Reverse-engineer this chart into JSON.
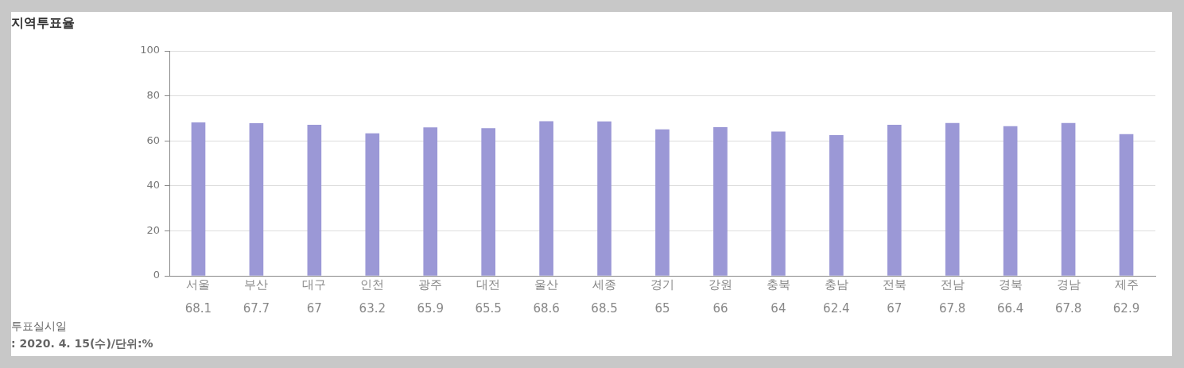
{
  "chart_data": {
    "type": "bar",
    "title": "지역투표율",
    "categories": [
      "서울",
      "부산",
      "대구",
      "인천",
      "광주",
      "대전",
      "울산",
      "세종",
      "경기",
      "강원",
      "충북",
      "충남",
      "전북",
      "전남",
      "경북",
      "경남",
      "제주"
    ],
    "values": [
      68.1,
      67.7,
      67,
      63.2,
      65.9,
      65.5,
      68.6,
      68.5,
      65,
      66,
      64,
      62.4,
      67,
      67.8,
      66.4,
      67.8,
      62.9
    ],
    "color": "#9b98d6",
    "ylim": [
      0,
      100
    ],
    "yticks": [
      0,
      20,
      40,
      60,
      80,
      100
    ],
    "grid": "y",
    "legend": false,
    "data_labels": true,
    "annotations": [
      "투표실시일",
      ": 2020. 4. 15(수)/단위:%"
    ]
  }
}
